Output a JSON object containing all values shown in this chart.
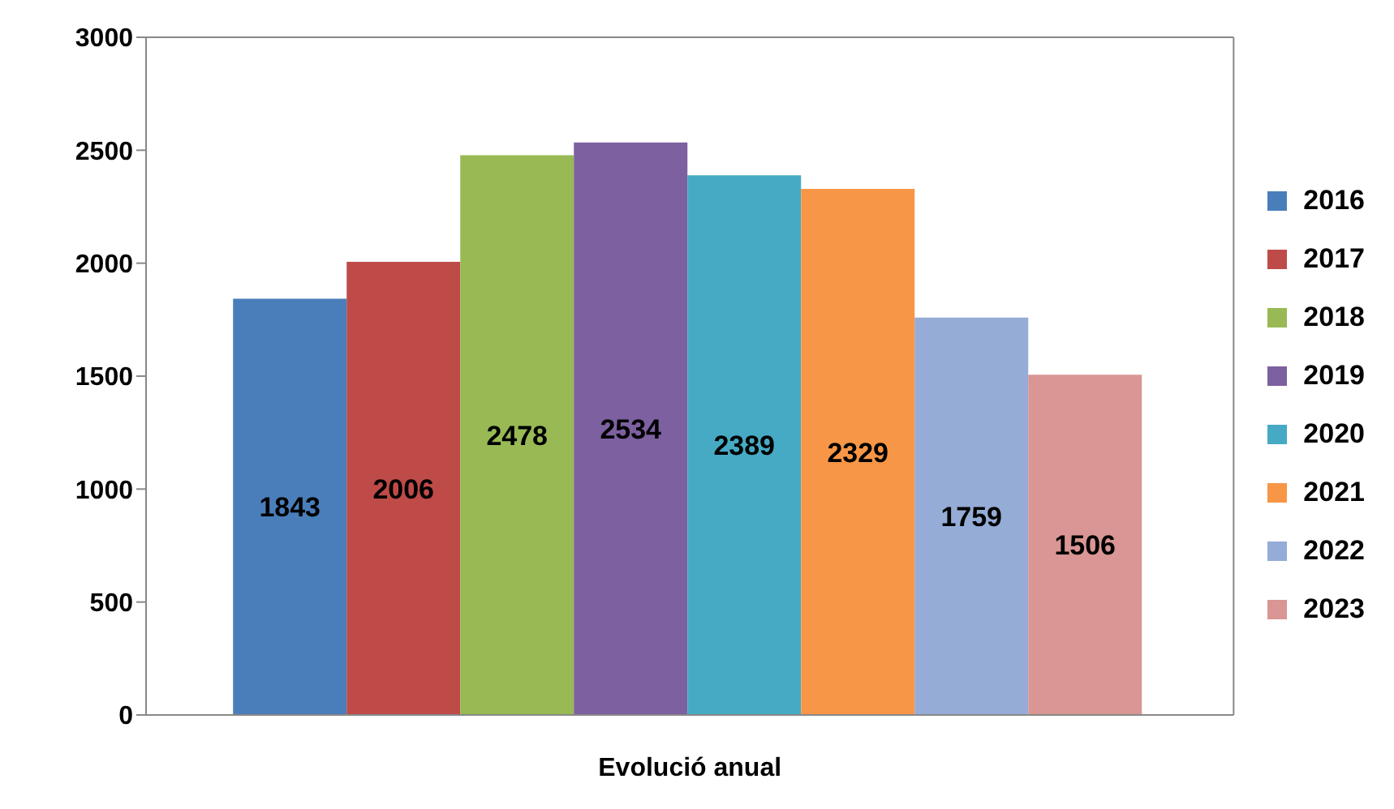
{
  "chart_data": {
    "type": "bar",
    "categories": [
      "Evolució anual"
    ],
    "series": [
      {
        "name": "2016",
        "color": "#4a7ebb",
        "values": [
          1843
        ]
      },
      {
        "name": "2017",
        "color": "#be4b48",
        "values": [
          2006
        ]
      },
      {
        "name": "2018",
        "color": "#98b954",
        "values": [
          2478
        ]
      },
      {
        "name": "2019",
        "color": "#7d60a0",
        "values": [
          2534
        ]
      },
      {
        "name": "2020",
        "color": "#46aac5",
        "values": [
          2389
        ]
      },
      {
        "name": "2021",
        "color": "#f79646",
        "values": [
          2329
        ]
      },
      {
        "name": "2022",
        "color": "#95acd6",
        "values": [
          1759
        ]
      },
      {
        "name": "2023",
        "color": "#d99694",
        "values": [
          1506
        ]
      }
    ],
    "ylim": [
      0,
      3000
    ],
    "yticks": [
      0,
      500,
      1000,
      1500,
      2000,
      2500,
      3000
    ],
    "data_labels": true,
    "legend": "right",
    "grid": false
  }
}
